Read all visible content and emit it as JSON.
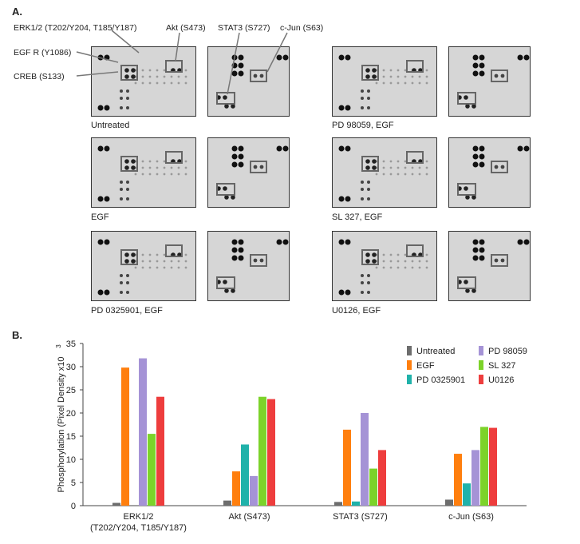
{
  "panel_a": {
    "label": "A.",
    "callouts": {
      "erk": "ERK1/2 (T202/Y204, T185/Y187)",
      "akt": "Akt (S473)",
      "stat3": "STAT3 (S727)",
      "cjun": "c-Jun (S63)",
      "egfr": "EGF R (Y1086)",
      "creb": "CREB (S133)"
    },
    "arrays": [
      {
        "caption": "Untreated"
      },
      {
        "caption": "PD 98059, EGF"
      },
      {
        "caption": "EGF"
      },
      {
        "caption": "SL 327, EGF"
      },
      {
        "caption": "PD 0325901, EGF"
      },
      {
        "caption": "U0126, EGF"
      }
    ]
  },
  "panel_b": {
    "label": "B."
  },
  "chart_data": {
    "type": "bar",
    "title": "",
    "xlabel": "",
    "ylabel": "Phosphorylation (Pixel Density x10",
    "ylabel_superscript": "3",
    "ylim": [
      0,
      35
    ],
    "yticks": [
      0,
      5,
      10,
      15,
      20,
      25,
      30,
      35
    ],
    "grid": false,
    "legend_position": "top-right",
    "categories": [
      [
        "ERK1/2",
        "(T202/Y204, T185/Y187)"
      ],
      [
        "Akt (S473)"
      ],
      [
        "STAT3 (S727)"
      ],
      [
        "c-Jun (S63)"
      ]
    ],
    "series": [
      {
        "name": "Untreated",
        "color": "#6d6d6d",
        "values": [
          0.6,
          1.1,
          0.8,
          1.3
        ]
      },
      {
        "name": "EGF",
        "color": "#ff7f0e",
        "values": [
          29.8,
          7.4,
          16.4,
          11.2
        ]
      },
      {
        "name": "PD 0325901",
        "color": "#20b2aa",
        "values": [
          0,
          13.2,
          0.9,
          4.8
        ]
      },
      {
        "name": "PD 98059",
        "color": "#a593d6",
        "values": [
          31.8,
          6.4,
          20.0,
          12.0
        ]
      },
      {
        "name": "SL 327",
        "color": "#7cd32a",
        "values": [
          15.5,
          23.5,
          8.0,
          17.0
        ]
      },
      {
        "name": "U0126",
        "color": "#ee3d3d",
        "values": [
          23.5,
          23.0,
          12.0,
          16.8
        ]
      }
    ]
  }
}
